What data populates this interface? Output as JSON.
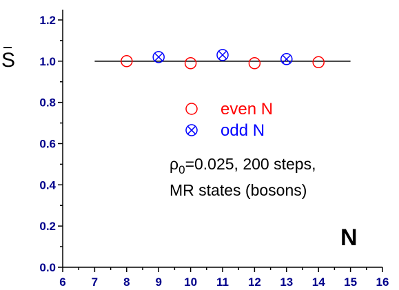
{
  "chart_data": {
    "type": "scatter",
    "xlabel": "N",
    "ylabel": "S",
    "xlim": [
      6,
      16
    ],
    "ylim": [
      0.0,
      1.25
    ],
    "x_ticks": [
      6,
      7,
      8,
      9,
      10,
      11,
      12,
      13,
      14,
      15,
      16
    ],
    "y_ticks": [
      0.0,
      0.2,
      0.4,
      0.6,
      0.8,
      1.0,
      1.2
    ],
    "x_tick_labels": [
      "6",
      "7",
      "8",
      "9",
      "10",
      "11",
      "12",
      "13",
      "14",
      "15",
      "16"
    ],
    "y_tick_labels": [
      "0.0",
      "0.2",
      "0.4",
      "0.6",
      "0.8",
      "1.0",
      "1.2"
    ],
    "series": [
      {
        "name": "even N",
        "color": "#ff0000",
        "marker": "circle",
        "x": [
          8,
          10,
          12,
          14
        ],
        "y": [
          1.0,
          0.99,
          0.99,
          0.995
        ]
      },
      {
        "name": "odd N",
        "color": "#0000ff",
        "marker": "circle-x",
        "x": [
          9,
          11,
          13
        ],
        "y": [
          1.02,
          1.03,
          1.01
        ]
      }
    ],
    "reference_line": {
      "x": [
        7,
        15
      ],
      "y": [
        1.0,
        1.0
      ],
      "color": "#000000"
    },
    "annotations": {
      "rho_symbol": "ρ",
      "rho_subscript": "0",
      "rho_rest": "=0.025, 200 steps,",
      "line2": "MR states (bosons)"
    },
    "legend_position": "center",
    "grid": false
  }
}
